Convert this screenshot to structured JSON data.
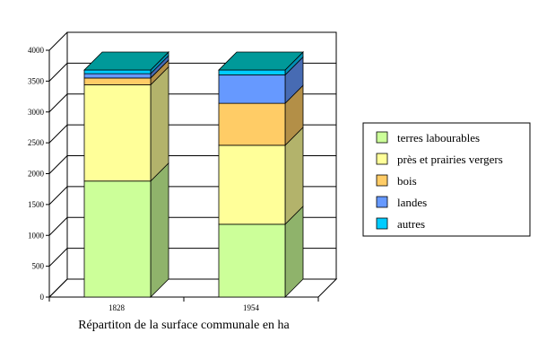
{
  "chart_data": {
    "type": "bar",
    "stacked": true,
    "three_d": true,
    "categories": [
      "1828",
      "1954"
    ],
    "series": [
      {
        "name": "terres labourables",
        "values": [
          1880,
          1180
        ],
        "color": "#ccff99",
        "side_color": "#8fb36b"
      },
      {
        "name": "près et prairies vergers",
        "values": [
          1560,
          1280
        ],
        "color": "#ffff99",
        "side_color": "#b3b36b"
      },
      {
        "name": "bois",
        "values": [
          110,
          680
        ],
        "color": "#ffcc66",
        "side_color": "#b38f47"
      },
      {
        "name": "landes",
        "values": [
          70,
          460
        ],
        "color": "#6699ff",
        "side_color": "#476bb3"
      },
      {
        "name": "autres",
        "values": [
          60,
          80
        ],
        "color": "#00ccff",
        "side_color": "#008fb3"
      }
    ],
    "ylim": [
      0,
      4000
    ],
    "yticks": [
      0,
      500,
      1000,
      1500,
      2000,
      2500,
      3000,
      3500,
      4000
    ],
    "xlabel": "Répartiton de la surface communale en ha",
    "ylabel": "",
    "title": "",
    "grid": true,
    "legend_position": "right"
  }
}
